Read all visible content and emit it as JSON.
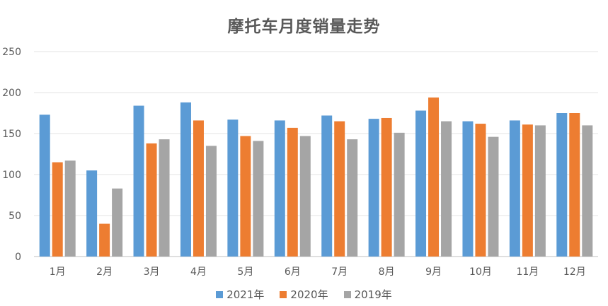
{
  "chart_data": {
    "type": "bar",
    "title": "摩托车月度销量走势",
    "categories": [
      "1月",
      "2月",
      "3月",
      "4月",
      "5月",
      "6月",
      "7月",
      "8月",
      "9月",
      "10月",
      "11月",
      "12月"
    ],
    "series": [
      {
        "name": "2021年",
        "color": "#5b9bd5",
        "values": [
          173,
          105,
          184,
          188,
          167,
          166,
          172,
          168,
          178,
          165,
          166,
          175
        ]
      },
      {
        "name": "2020年",
        "color": "#ed7d31",
        "values": [
          115,
          40,
          138,
          166,
          147,
          157,
          165,
          169,
          194,
          162,
          161,
          175
        ]
      },
      {
        "name": "2019年",
        "color": "#a5a5a5",
        "values": [
          117,
          83,
          143,
          135,
          141,
          147,
          143,
          151,
          165,
          146,
          160,
          160
        ]
      }
    ],
    "yticks": [
      0,
      50,
      100,
      150,
      200,
      250
    ],
    "ylim": [
      0,
      250
    ],
    "grid": true,
    "legend": "bottom"
  }
}
